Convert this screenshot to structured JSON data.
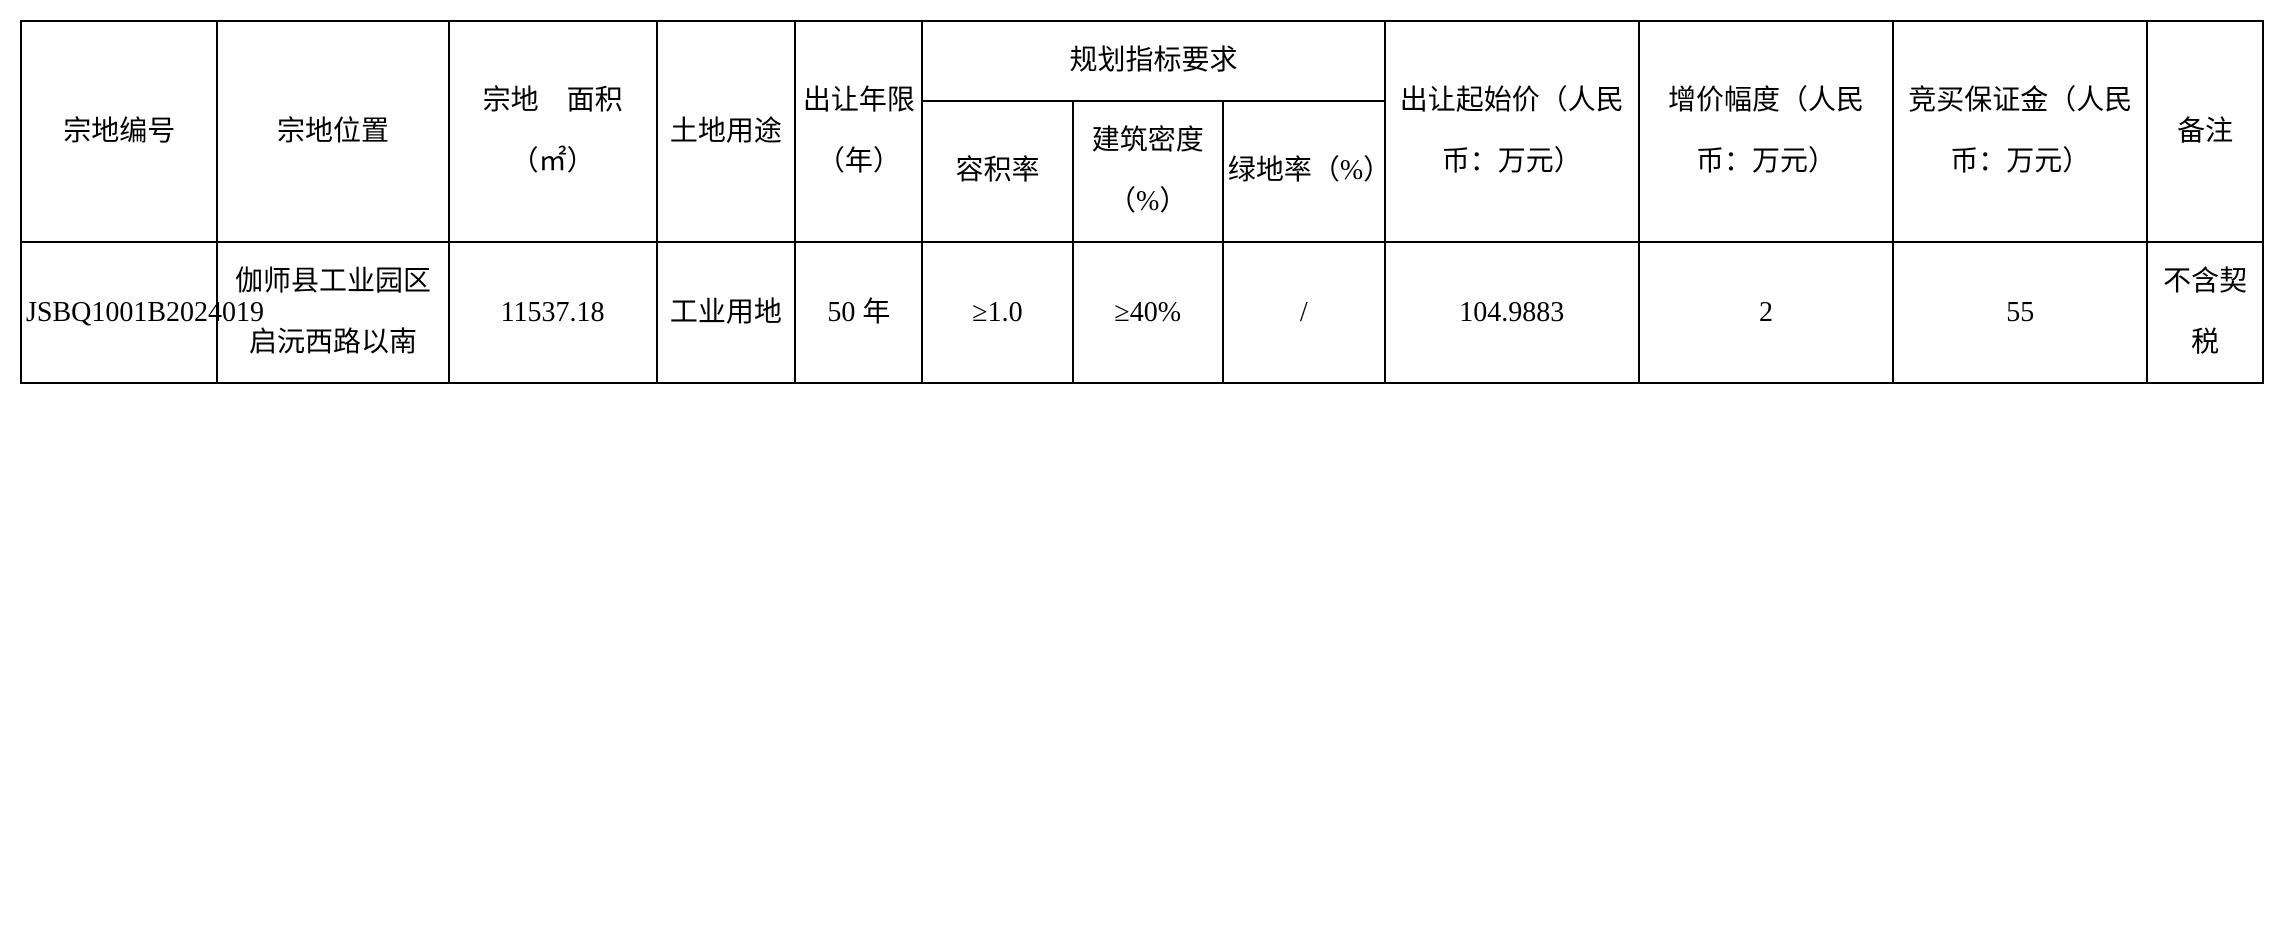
{
  "table": {
    "headers": {
      "parcel_id": "宗地编号",
      "location": "宗地位置",
      "area": "宗地　面积（㎡）",
      "land_use": "土地用途",
      "years": "出让年限（年）",
      "planning": "规划指标要求",
      "plot_ratio": "容积率",
      "building_density": "建筑密度（%）",
      "green_rate": "绿地率（%）",
      "start_price": "出让起始价（人民币：万元）",
      "increment": "增价幅度（人民币：万元）",
      "deposit": "竞买保证金（人民币：万元）",
      "note": "备注"
    },
    "rows": [
      {
        "parcel_id": "JSBQ1001B2024019",
        "location": "伽师县工业园区启沅西路以南",
        "area": "11537.18",
        "land_use": "工业用地",
        "years": "50 年",
        "plot_ratio": "≥1.0",
        "building_density": "≥40%",
        "green_rate": "/",
        "start_price": "104.9883",
        "increment": "2",
        "deposit": "55",
        "note": "不含契税"
      }
    ],
    "styling": {
      "border_color": "#000000",
      "border_width": 2,
      "background_color": "#ffffff",
      "text_color": "#000000",
      "font_family": "SimSun",
      "font_size": 28,
      "line_height": 2.2,
      "text_align": "center"
    }
  }
}
